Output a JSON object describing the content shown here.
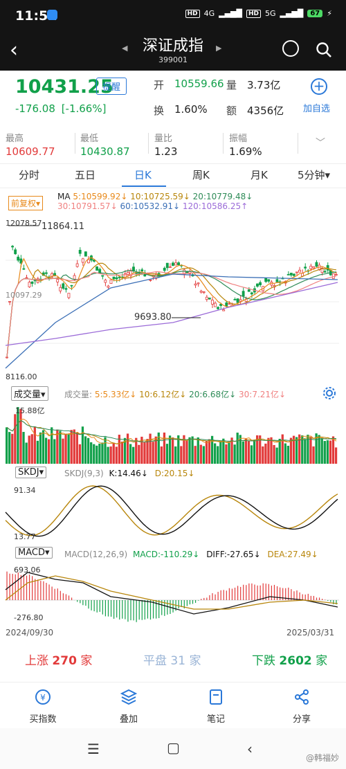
{
  "status": {
    "time": "11:52",
    "battery": "67",
    "net1": "4G",
    "net2": "5G",
    "hd": "HD"
  },
  "header": {
    "title": "深证成指",
    "code": "399001"
  },
  "quote": {
    "price": "10431.25",
    "alert_label": "提醒",
    "change": "-176.08",
    "change_pct": "[-1.66%]",
    "open_label": "开",
    "open": "10559.66",
    "volume_label": "量",
    "volume": "3.73亿",
    "turnover_label": "换",
    "turnover": "1.60%",
    "amount_label": "额",
    "amount": "4356亿",
    "add_fav_label": "加自选"
  },
  "stats": [
    {
      "label": "最高",
      "value": "10609.77",
      "color": "#e23a3a"
    },
    {
      "label": "最低",
      "value": "10430.87",
      "color": "#11a04a"
    },
    {
      "label": "量比",
      "value": "1.23",
      "color": "#222"
    },
    {
      "label": "振幅",
      "value": "1.69%",
      "color": "#222"
    }
  ],
  "tabs": [
    "分时",
    "五日",
    "日K",
    "周K",
    "月K",
    "5分钟▾"
  ],
  "active_tab": "日K",
  "kline": {
    "adj_label": "前复权",
    "ma_label": "MA",
    "ma": [
      {
        "text": "5:10599.92↓",
        "color": "#e8891a"
      },
      {
        "text": "10:10725.59↓",
        "color": "#b8860b"
      },
      {
        "text": "20:10779.48↓",
        "color": "#2e8b57"
      },
      {
        "text": "30:10791.57↓",
        "color": "#f08080"
      },
      {
        "text": "60:10532.91↓",
        "color": "#3b6fb6"
      },
      {
        "text": "120:10586.25↑",
        "color": "#9b6bd8"
      }
    ],
    "top_label": "12078.57",
    "high_mark": "11864.11",
    "mid_label": "10097.29",
    "low_mark": "9693.80",
    "bottom_label": "8116.00"
  },
  "volume": {
    "pill": "成交量",
    "title": "成交量:",
    "ma5": "5:5.33亿↓",
    "ma10": "10:6.12亿↓",
    "ma20": "20:6.68亿↓",
    "ma30": "30:7.21亿↓",
    "max_label": "15.88亿"
  },
  "kdj": {
    "pill": "SKDJ",
    "params": "SKDJ(9,3)",
    "k": "K:14.46↓",
    "d": "D:20.15↓",
    "top_label": "91.34",
    "bottom_label": "13.77"
  },
  "macd": {
    "pill": "MACD",
    "params": "MACD(12,26,9)",
    "macd": "MACD:-110.29↓",
    "diff": "DIFF:-27.65↓",
    "dea": "DEA:27.49↓",
    "top_label": "693.06",
    "bottom_label": "-276.80"
  },
  "dates": {
    "start": "2024/09/30",
    "end": "2025/03/31"
  },
  "market": {
    "up_label": "上涨",
    "up": "270",
    "up_unit": "家",
    "flat_label": "平盘",
    "flat": "31",
    "flat_unit": "家",
    "down_label": "下跌",
    "down": "2602",
    "down_unit": "家"
  },
  "toolbar": [
    "买指数",
    "叠加",
    "笔记",
    "分享"
  ],
  "watermark": "@韩福妙",
  "colors": {
    "up": "#e23a3a",
    "down": "#11a04a",
    "accent": "#2a78d8"
  }
}
